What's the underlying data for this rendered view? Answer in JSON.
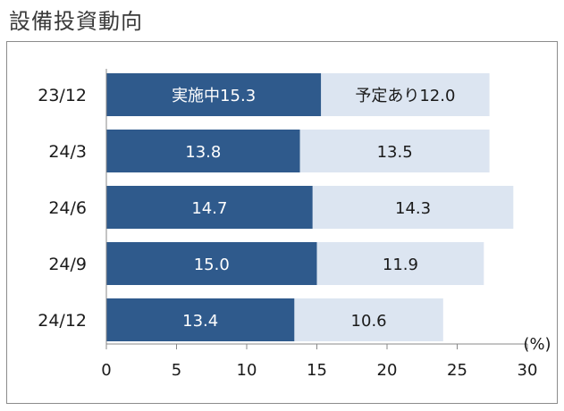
{
  "title": "設備投資動向",
  "chart_data": {
    "type": "bar",
    "orientation": "horizontal",
    "stacked": true,
    "categories": [
      "23/12",
      "24/3",
      "24/6",
      "24/9",
      "24/12"
    ],
    "series": [
      {
        "name": "実施中",
        "color": "#2f5a8c",
        "values": [
          15.3,
          13.8,
          14.7,
          15.0,
          13.4
        ],
        "labels": [
          "実施中15.3",
          "13.8",
          "14.7",
          "15.0",
          "13.4"
        ]
      },
      {
        "name": "予定あり",
        "color": "#dce5f1",
        "values": [
          12.0,
          13.5,
          14.3,
          11.9,
          10.6
        ],
        "labels": [
          "予定あり12.0",
          "13.5",
          "14.3",
          "11.9",
          "10.6"
        ]
      }
    ],
    "xlim": [
      0,
      30
    ],
    "xticks": [
      "0",
      "5",
      "10",
      "15",
      "20",
      "25",
      "30"
    ],
    "xunit": "(%)",
    "grid": false,
    "legend": "none"
  }
}
